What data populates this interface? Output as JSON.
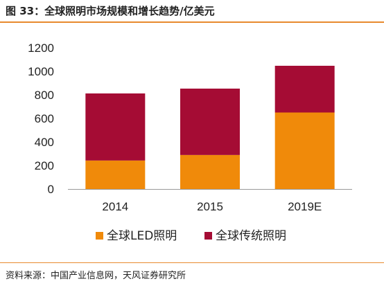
{
  "figure": {
    "title": "图 33：全球照明市场规模和增长趋势/亿美元",
    "source": "资料来源：中国产业信息网，天风证券研究所"
  },
  "colors": {
    "accent_rule": "#e88a2d",
    "led": "#f08a0a",
    "traditional": "#a50c34",
    "axis": "#999999"
  },
  "chart_data": {
    "type": "bar",
    "stacked": true,
    "categories": [
      "2014",
      "2015",
      "2019E"
    ],
    "series": [
      {
        "name": "全球LED照明",
        "values": [
          242,
          289,
          650
        ]
      },
      {
        "name": "全球传统照明",
        "values": [
          570,
          564,
          397
        ]
      }
    ],
    "ylim": [
      0,
      1200
    ],
    "yticks": [
      "0",
      "200",
      "400",
      "600",
      "800",
      "1000",
      "1200"
    ],
    "ytick_values": [
      0,
      200,
      400,
      600,
      800,
      1000,
      1200
    ],
    "grid": false,
    "legend_position": "bottom"
  }
}
